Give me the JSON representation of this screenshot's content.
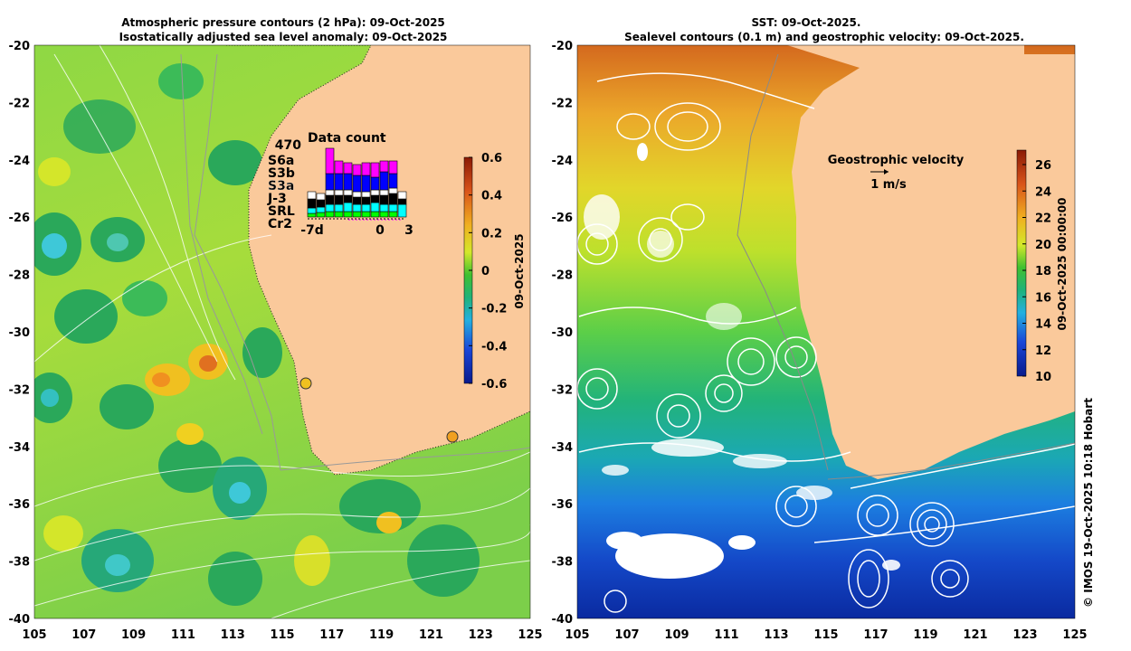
{
  "left_panel": {
    "title_line1": "Atmospheric pressure contours (2 hPa): 09-Oct-2025",
    "title_line2": "Isostatically adjusted sea level anomaly: 09-Oct-2025",
    "y_ticks": [
      "-20",
      "-22",
      "-24",
      "-26",
      "-28",
      "-30",
      "-32",
      "-34",
      "-36",
      "-38",
      "-40"
    ],
    "x_ticks": [
      "105",
      "107",
      "109",
      "111",
      "113",
      "115",
      "117",
      "119",
      "121",
      "123",
      "125"
    ],
    "colorbar": {
      "ticks": [
        "0.6",
        "0.4",
        "0.2",
        "0",
        "-0.2",
        "-0.4",
        "-0.6"
      ],
      "label": "09-Oct-2025"
    },
    "data_count": {
      "title": "Data count",
      "max_label": "470",
      "missions": [
        {
          "name": "S6a",
          "color": "#ff00ff"
        },
        {
          "name": "S3b",
          "color": "#0000ff"
        },
        {
          "name": "S3a",
          "color": "#ffffff"
        },
        {
          "name": "J-3",
          "color": "#000000"
        },
        {
          "name": "SRL",
          "color": "#00ffff"
        },
        {
          "name": "Cr2",
          "color": "#00ff00"
        }
      ],
      "x_labels": [
        "-7d",
        "0",
        "3"
      ]
    }
  },
  "right_panel": {
    "title_line1": "SST: 09-Oct-2025.",
    "title_line2": "Sealevel contours (0.1 m) and geostrophic velocity: 09-Oct-2025.",
    "y_ticks": [
      "-20",
      "-22",
      "-24",
      "-26",
      "-28",
      "-30",
      "-32",
      "-34",
      "-36",
      "-38",
      "-40"
    ],
    "x_ticks": [
      "105",
      "107",
      "109",
      "111",
      "113",
      "115",
      "117",
      "119",
      "121",
      "123",
      "125"
    ],
    "velocity_legend": {
      "title": "Geostrophic velocity",
      "scale": "1 m/s"
    },
    "colorbar": {
      "ticks": [
        "26",
        "24",
        "22",
        "20",
        "18",
        "16",
        "14",
        "12",
        "10"
      ],
      "label": "09-Oct-2025 00:00:00"
    }
  },
  "copyright": "© IMOS 19-Oct-2025 10:18 Hobart",
  "colors": {
    "land": "#fac99b",
    "ssl_high": "#e8901a",
    "ssl_mid": "#9fdc3a",
    "ssl_low": "#22a860",
    "sst_warm": "#d0641c",
    "sst_cold": "#0a2ea8"
  }
}
